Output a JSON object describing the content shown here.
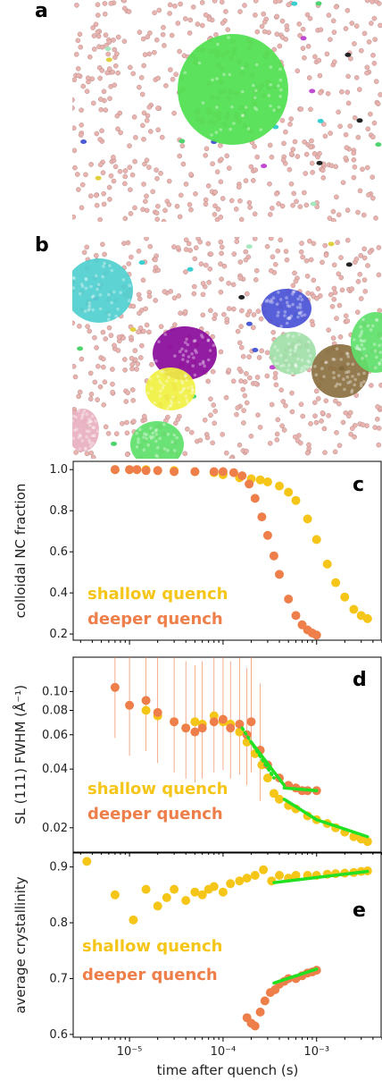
{
  "panels": {
    "a": {
      "letter": "a"
    },
    "b": {
      "letter": "b"
    }
  },
  "colors": {
    "shallow": "#f5c518",
    "deeper": "#ee7f4a",
    "fit": "#22e022",
    "background_particle": "#e8b4b0"
  },
  "xaxis": {
    "label": "time after quench (s)",
    "scale": "log",
    "xlim": [
      2.5e-06,
      0.005
    ],
    "tick_labels": [
      "10⁻⁵",
      "10⁻⁴",
      "10⁻³"
    ]
  },
  "chart_data": [
    {
      "type": "scatter",
      "panel": "c",
      "ylabel": "colloidal NC fraction",
      "yscale": "linear",
      "ylim": [
        0.17,
        1.04
      ],
      "yticks": [
        "0.2",
        "0.4",
        "0.6",
        "0.8",
        "1.0"
      ],
      "legend_text": [
        "shallow quench",
        "deeper quench"
      ],
      "legend_placement": "bottom-left",
      "series": [
        {
          "name": "shallow quench",
          "color": "#f5c518",
          "x": [
            7e-06,
            1e-05,
            1.2e-05,
            1.5e-05,
            2e-05,
            3e-05,
            5e-05,
            8e-05,
            0.0001,
            0.00015,
            0.0002,
            0.00025,
            0.0003,
            0.0004,
            0.0005,
            0.0006,
            0.0008,
            0.001,
            0.0013,
            0.0016,
            0.002,
            0.0025,
            0.003,
            0.0035
          ],
          "y": [
            1.0,
            1.0,
            1.0,
            1.0,
            0.995,
            0.995,
            0.99,
            0.985,
            0.975,
            0.96,
            0.955,
            0.95,
            0.94,
            0.92,
            0.89,
            0.85,
            0.76,
            0.66,
            0.54,
            0.45,
            0.38,
            0.32,
            0.29,
            0.275
          ]
        },
        {
          "name": "deeper quench",
          "color": "#ee7f4a",
          "x": [
            7e-06,
            1e-05,
            1.2e-05,
            1.5e-05,
            2e-05,
            3e-05,
            5e-05,
            8e-05,
            0.0001,
            0.00013,
            0.00016,
            0.00019,
            0.00022,
            0.00026,
            0.0003,
            0.00035,
            0.0004,
            0.0005,
            0.0006,
            0.0007,
            0.0008,
            0.0009,
            0.001
          ],
          "y": [
            1.0,
            1.0,
            1.0,
            0.995,
            0.995,
            0.99,
            0.99,
            0.99,
            0.99,
            0.985,
            0.97,
            0.93,
            0.86,
            0.77,
            0.68,
            0.58,
            0.49,
            0.37,
            0.29,
            0.245,
            0.22,
            0.205,
            0.195
          ]
        }
      ]
    },
    {
      "type": "scatter",
      "panel": "d",
      "ylabel": "SL (111) FWHM (Å⁻¹)",
      "yscale": "log",
      "ylim": [
        0.015,
        0.15
      ],
      "yticks": [
        "0.02",
        "0.04",
        "0.06",
        "0.08",
        "0.10"
      ],
      "legend_text": [
        "shallow quench",
        "deeper quench"
      ],
      "legend_placement": "bottom-left",
      "series": [
        {
          "name": "shallow quench",
          "color": "#f5c518",
          "x": [
            1.5e-05,
            2e-05,
            3e-05,
            4e-05,
            5e-05,
            6e-05,
            8e-05,
            0.0001,
            0.00012,
            0.00015,
            0.00018,
            0.00022,
            0.00026,
            0.0003,
            0.00035,
            0.0004,
            0.0005,
            0.0006,
            0.0008,
            0.001,
            0.0013,
            0.0016,
            0.002,
            0.0025,
            0.003,
            0.0035
          ],
          "y": [
            0.08,
            0.075,
            0.07,
            0.065,
            0.07,
            0.068,
            0.075,
            0.07,
            0.068,
            0.062,
            0.055,
            0.048,
            0.042,
            0.036,
            0.03,
            0.028,
            0.026,
            0.025,
            0.023,
            0.022,
            0.021,
            0.02,
            0.019,
            0.018,
            0.0175,
            0.017
          ]
        },
        {
          "name": "deeper quench",
          "color": "#ee7f4a",
          "x": [
            7e-06,
            1e-05,
            1.5e-05,
            2e-05,
            3e-05,
            4e-05,
            5e-05,
            6e-05,
            8e-05,
            0.0001,
            0.00012,
            0.00015,
            0.00018,
            0.0002,
            0.00025,
            0.0003,
            0.0004,
            0.0005,
            0.0006,
            0.0007,
            0.0008,
            0.001
          ],
          "y": [
            0.105,
            0.085,
            0.09,
            0.078,
            0.07,
            0.065,
            0.062,
            0.065,
            0.07,
            0.072,
            0.065,
            0.068,
            0.06,
            0.07,
            0.05,
            0.042,
            0.036,
            0.033,
            0.032,
            0.031,
            0.031,
            0.031
          ]
        }
      ],
      "fits": [
        {
          "series": "deeper quench",
          "style": "dotted",
          "x": [
            0.00016,
            0.00035
          ],
          "y": [
            0.065,
            0.036
          ]
        },
        {
          "series": "deeper quench",
          "style": "solid",
          "x": [
            0.0002,
            0.00045
          ],
          "y": [
            0.055,
            0.033
          ]
        },
        {
          "series": "deeper quench",
          "style": "solid",
          "x": [
            0.00045,
            0.001
          ],
          "y": [
            0.032,
            0.031
          ]
        },
        {
          "series": "shallow quench",
          "style": "solid",
          "x": [
            0.00045,
            0.001
          ],
          "y": [
            0.028,
            0.022
          ]
        },
        {
          "series": "shallow quench",
          "style": "solid",
          "x": [
            0.001,
            0.0035
          ],
          "y": [
            0.022,
            0.018
          ]
        }
      ]
    },
    {
      "type": "scatter",
      "panel": "e",
      "ylabel": "average crystallinity",
      "yscale": "linear",
      "ylim": [
        0.595,
        0.925
      ],
      "yticks": [
        "0.6",
        "0.7",
        "0.8",
        "0.9"
      ],
      "legend_text": [
        "shallow quench",
        "deeper quench"
      ],
      "legend_placement": "center-left",
      "series": [
        {
          "name": "shallow quench",
          "color": "#f5c518",
          "x": [
            3.5e-06,
            7e-06,
            1.1e-05,
            1.5e-05,
            2e-05,
            2.5e-05,
            3e-05,
            4e-05,
            5e-05,
            6e-05,
            7e-05,
            8e-05,
            0.0001,
            0.00012,
            0.00015,
            0.00018,
            0.00022,
            0.00027,
            0.00033,
            0.0004,
            0.0005,
            0.0006,
            0.0008,
            0.001,
            0.0013,
            0.0016,
            0.002,
            0.0025,
            0.003,
            0.0035
          ],
          "y": [
            0.91,
            0.85,
            0.805,
            0.86,
            0.83,
            0.845,
            0.86,
            0.84,
            0.855,
            0.85,
            0.86,
            0.865,
            0.855,
            0.87,
            0.875,
            0.88,
            0.885,
            0.895,
            0.875,
            0.885,
            0.88,
            0.885,
            0.885,
            0.885,
            0.887,
            0.888,
            0.889,
            0.89,
            0.892,
            0.893
          ]
        },
        {
          "name": "deeper quench",
          "color": "#ee7f4a",
          "x": [
            0.00018,
            0.0002,
            0.00022,
            0.00025,
            0.00028,
            0.00032,
            0.00036,
            0.0004,
            0.00045,
            0.0005,
            0.0006,
            0.0007,
            0.0008,
            0.0009,
            0.001
          ],
          "y": [
            0.63,
            0.62,
            0.615,
            0.64,
            0.66,
            0.675,
            0.68,
            0.69,
            0.695,
            0.7,
            0.7,
            0.705,
            0.71,
            0.712,
            0.715
          ]
        }
      ],
      "fits": [
        {
          "series": "shallow quench",
          "style": "solid",
          "x": [
            0.00035,
            0.0035
          ],
          "y": [
            0.872,
            0.892
          ]
        },
        {
          "series": "deeper quench",
          "style": "solid",
          "x": [
            0.00035,
            0.001
          ],
          "y": [
            0.692,
            0.717
          ]
        }
      ]
    }
  ]
}
